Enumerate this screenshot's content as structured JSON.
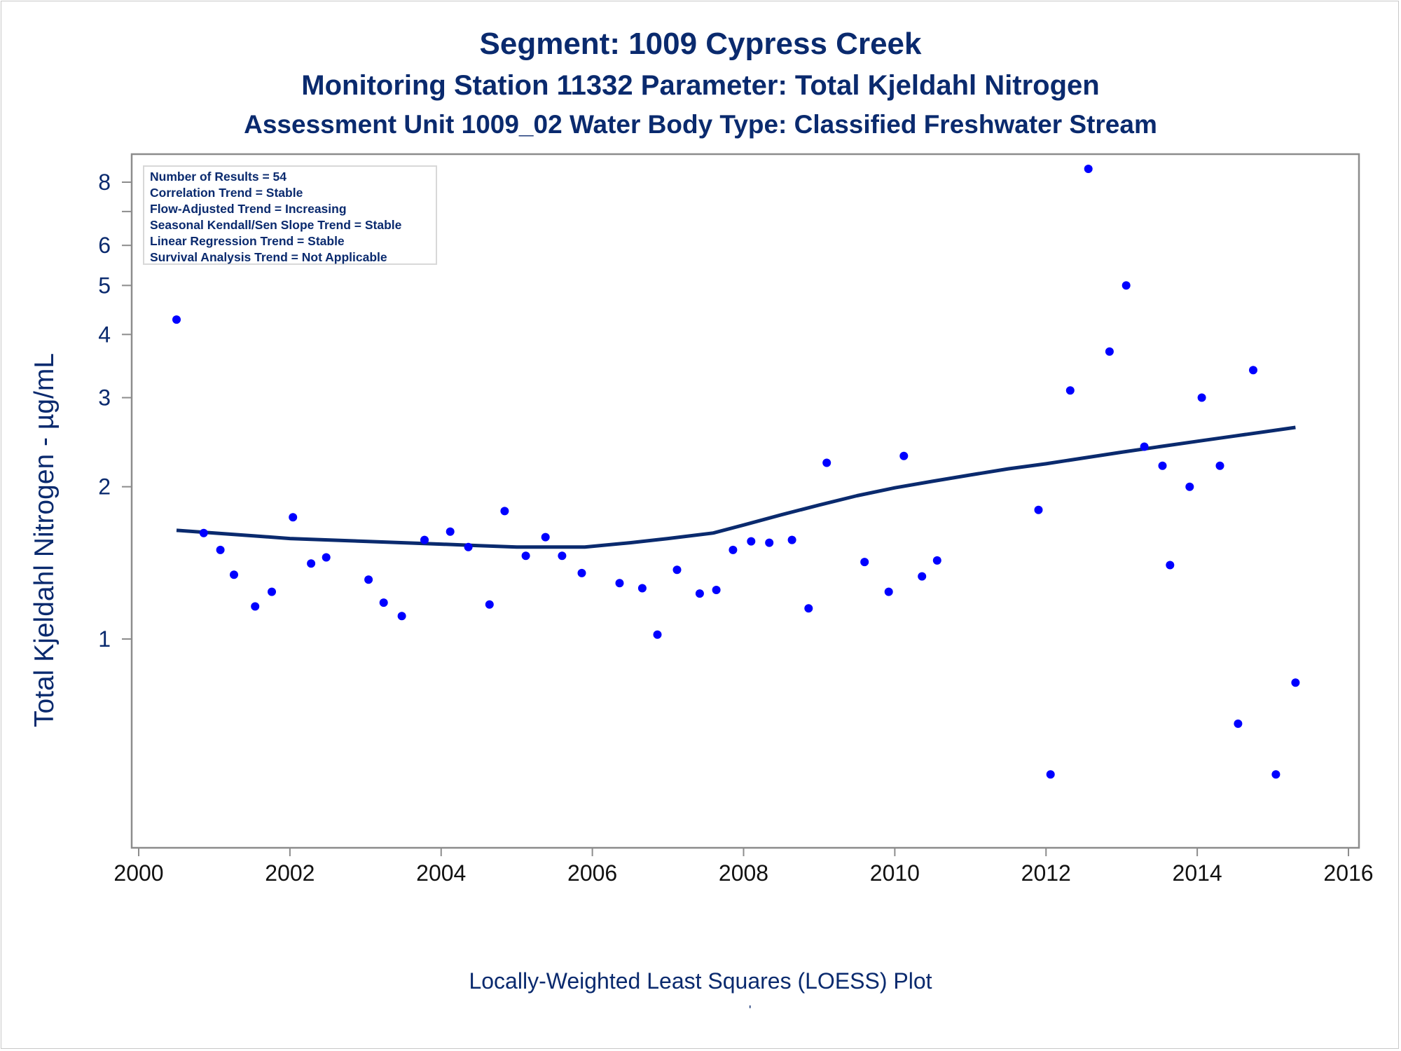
{
  "titles": {
    "line1": "Segment: 1009  Cypress Creek",
    "line2": "Monitoring Station 11332 Parameter: Total Kjeldahl Nitrogen",
    "line3": "Assessment Unit 1009_02   Water Body Type: Classified Freshwater Stream"
  },
  "stats_box": [
    "Number of Results = 54",
    "Correlation Trend = Stable",
    "Flow-Adjusted Trend = Increasing",
    "Seasonal Kendall/Sen Slope Trend = Stable",
    "Linear Regression Trend = Stable",
    "Survival Analysis Trend = Not Applicable"
  ],
  "footer_mark": "'",
  "colors": {
    "title": "#0a2a6e",
    "points": "#0000ff",
    "loess": "#0a2a6e",
    "axis": "#8c8c8c"
  },
  "chart_data": {
    "type": "scatter",
    "xlabel": "Locally-Weighted Least Squares (LOESS) Plot",
    "ylabel": "Total Kjeldahl Nitrogen -  µg/mL",
    "yscale": "log",
    "xlim": [
      2000,
      2016
    ],
    "ylim": [
      0.54,
      8.8
    ],
    "xticks": [
      2000,
      2002,
      2004,
      2006,
      2008,
      2010,
      2012,
      2014,
      2016
    ],
    "yticks": [
      1,
      2,
      3,
      4,
      5,
      6,
      8
    ],
    "yminor": [
      7
    ],
    "legend": "top-left",
    "points": [
      [
        2000.5,
        4.28
      ],
      [
        2000.86,
        1.62
      ],
      [
        2001.08,
        1.5
      ],
      [
        2001.26,
        1.34
      ],
      [
        2001.54,
        1.16
      ],
      [
        2001.76,
        1.24
      ],
      [
        2002.04,
        1.74
      ],
      [
        2002.28,
        1.41
      ],
      [
        2002.48,
        1.45
      ],
      [
        2003.04,
        1.31
      ],
      [
        2003.24,
        1.18
      ],
      [
        2003.48,
        1.11
      ],
      [
        2003.78,
        1.57
      ],
      [
        2004.12,
        1.63
      ],
      [
        2004.36,
        1.52
      ],
      [
        2004.64,
        1.17
      ],
      [
        2004.84,
        1.79
      ],
      [
        2005.12,
        1.46
      ],
      [
        2005.38,
        1.59
      ],
      [
        2005.6,
        1.46
      ],
      [
        2005.86,
        1.35
      ],
      [
        2006.36,
        1.29
      ],
      [
        2006.66,
        1.26
      ],
      [
        2006.86,
        1.02
      ],
      [
        2007.12,
        1.37
      ],
      [
        2007.42,
        1.23
      ],
      [
        2007.64,
        1.25
      ],
      [
        2007.86,
        1.5
      ],
      [
        2008.1,
        1.56
      ],
      [
        2008.34,
        1.55
      ],
      [
        2008.64,
        1.57
      ],
      [
        2008.86,
        1.15
      ],
      [
        2009.1,
        2.23
      ],
      [
        2009.6,
        1.42
      ],
      [
        2009.92,
        1.24
      ],
      [
        2010.12,
        2.3
      ],
      [
        2010.36,
        1.33
      ],
      [
        2010.56,
        1.43
      ],
      [
        2011.9,
        1.8
      ],
      [
        2012.06,
        0.54
      ],
      [
        2012.32,
        3.1
      ],
      [
        2012.56,
        8.5
      ],
      [
        2012.84,
        3.7
      ],
      [
        2013.06,
        5.0
      ],
      [
        2013.3,
        2.4
      ],
      [
        2013.54,
        2.2
      ],
      [
        2013.64,
        1.4
      ],
      [
        2013.9,
        2.0
      ],
      [
        2014.06,
        3.0
      ],
      [
        2014.3,
        2.2
      ],
      [
        2014.54,
        0.68
      ],
      [
        2014.74,
        3.4
      ],
      [
        2015.04,
        0.54
      ],
      [
        2015.3,
        0.82
      ]
    ],
    "loess": [
      [
        2000.5,
        1.64
      ],
      [
        2001.0,
        1.62
      ],
      [
        2001.5,
        1.6
      ],
      [
        2002.0,
        1.58
      ],
      [
        2002.5,
        1.57
      ],
      [
        2003.0,
        1.56
      ],
      [
        2003.5,
        1.55
      ],
      [
        2004.0,
        1.54
      ],
      [
        2004.5,
        1.53
      ],
      [
        2005.0,
        1.52
      ],
      [
        2005.5,
        1.52
      ],
      [
        2005.9,
        1.52
      ],
      [
        2006.5,
        1.55
      ],
      [
        2007.0,
        1.58
      ],
      [
        2007.6,
        1.62
      ],
      [
        2008.0,
        1.68
      ],
      [
        2008.5,
        1.76
      ],
      [
        2009.0,
        1.84
      ],
      [
        2009.5,
        1.92
      ],
      [
        2010.0,
        1.99
      ],
      [
        2010.5,
        2.05
      ],
      [
        2011.0,
        2.11
      ],
      [
        2011.5,
        2.17
      ],
      [
        2012.0,
        2.22
      ],
      [
        2012.5,
        2.28
      ],
      [
        2013.0,
        2.34
      ],
      [
        2013.5,
        2.4
      ],
      [
        2014.0,
        2.46
      ],
      [
        2014.5,
        2.52
      ],
      [
        2015.3,
        2.62
      ]
    ]
  }
}
